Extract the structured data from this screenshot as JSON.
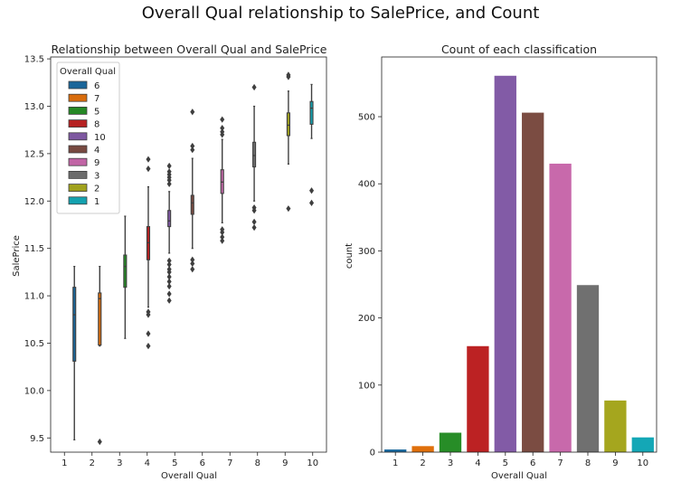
{
  "figure_title": "Overall Qual relationship to SalePrice, and Count",
  "chart_data": [
    {
      "type": "box",
      "title": "Relationship between Overall Qual and SalePrice",
      "xlabel": "Overall Qual",
      "ylabel": "SalePrice",
      "categories": [
        "1",
        "2",
        "3",
        "4",
        "5",
        "6",
        "7",
        "8",
        "9",
        "10"
      ],
      "ylim": [
        9.35,
        13.52
      ],
      "yticks": [
        9.5,
        10.0,
        10.5,
        11.0,
        11.5,
        12.0,
        12.5,
        13.0,
        13.5
      ],
      "yticklabels": [
        "9.5",
        "10.0",
        "10.5",
        "11.0",
        "11.5",
        "12.0",
        "12.5",
        "13.0",
        "13.5"
      ],
      "legend": {
        "title": "Overall Qual",
        "position": "top-left",
        "entries": [
          {
            "label": "6",
            "color": "#1f77b4"
          },
          {
            "label": "7",
            "color": "#ff7f0e"
          },
          {
            "label": "5",
            "color": "#2ca02c"
          },
          {
            "label": "8",
            "color": "#d62728"
          },
          {
            "label": "10",
            "color": "#9467bd"
          },
          {
            "label": "4",
            "color": "#8c564b"
          },
          {
            "label": "9",
            "color": "#e377c2"
          },
          {
            "label": "3",
            "color": "#7f7f7f"
          },
          {
            "label": "2",
            "color": "#bcbd22"
          },
          {
            "label": "1",
            "color": "#17becf"
          }
        ]
      },
      "boxes": [
        {
          "x": "1",
          "min": 9.48,
          "q1": 10.31,
          "median": 10.8,
          "q3": 11.09,
          "max": 11.31,
          "color": "#1f77b4",
          "outliers": []
        },
        {
          "x": "2",
          "min": 10.47,
          "q1": 10.48,
          "median": 10.97,
          "q3": 11.03,
          "max": 11.31,
          "color": "#ff7f0e",
          "outliers": [
            9.46
          ]
        },
        {
          "x": "3",
          "min": 10.55,
          "q1": 11.09,
          "median": 11.31,
          "q3": 11.43,
          "max": 11.84,
          "color": "#2ca02c",
          "outliers": []
        },
        {
          "x": "4",
          "min": 10.88,
          "q1": 11.38,
          "median": 11.56,
          "q3": 11.73,
          "max": 12.15,
          "color": "#d62728",
          "outliers": [
            10.47,
            10.6,
            10.8,
            10.83,
            12.34,
            12.44
          ]
        },
        {
          "x": "5",
          "min": 11.45,
          "q1": 11.73,
          "median": 11.79,
          "q3": 11.9,
          "max": 12.1,
          "color": "#9467bd",
          "outliers": [
            10.95,
            11.02,
            11.1,
            11.15,
            11.2,
            11.25,
            11.28,
            11.33,
            11.37,
            12.18,
            12.22,
            12.25,
            12.28,
            12.31,
            12.37
          ]
        },
        {
          "x": "6",
          "min": 11.5,
          "q1": 11.86,
          "median": 11.98,
          "q3": 12.06,
          "max": 12.45,
          "color": "#8c564b",
          "outliers": [
            11.28,
            11.34,
            11.38,
            12.54,
            12.58,
            12.94
          ]
        },
        {
          "x": "7",
          "min": 11.77,
          "q1": 12.08,
          "median": 12.2,
          "q3": 12.33,
          "max": 12.65,
          "color": "#e377c2",
          "outliers": [
            11.58,
            11.62,
            11.67,
            11.7,
            12.7,
            12.73,
            12.77,
            12.86
          ]
        },
        {
          "x": "8",
          "min": 12.0,
          "q1": 12.36,
          "median": 12.48,
          "q3": 12.62,
          "max": 13.0,
          "color": "#7f7f7f",
          "outliers": [
            11.72,
            11.78,
            11.9,
            11.93,
            13.2
          ]
        },
        {
          "x": "9",
          "min": 12.39,
          "q1": 12.69,
          "median": 12.8,
          "q3": 12.93,
          "max": 13.16,
          "color": "#bcbd22",
          "outliers": [
            11.92,
            13.31,
            13.33
          ]
        },
        {
          "x": "10",
          "min": 12.66,
          "q1": 12.81,
          "median": 12.98,
          "q3": 13.05,
          "max": 13.23,
          "color": "#17becf",
          "outliers": [
            11.98,
            12.11
          ]
        }
      ]
    },
    {
      "type": "bar",
      "title": "Count of each classification",
      "xlabel": "Overall Qual",
      "ylabel": "count",
      "categories": [
        "1",
        "2",
        "3",
        "4",
        "5",
        "6",
        "7",
        "8",
        "9",
        "10"
      ],
      "values": [
        4,
        9,
        29,
        158,
        561,
        506,
        430,
        249,
        77,
        22
      ],
      "colors": [
        "#1f77b4",
        "#ff7f0e",
        "#2ca02c",
        "#d62728",
        "#9467bd",
        "#8c564b",
        "#e377c2",
        "#7f7f7f",
        "#bcbd22",
        "#17becf"
      ],
      "ylim": [
        0,
        589
      ],
      "yticks": [
        0,
        100,
        200,
        300,
        400,
        500
      ],
      "yticklabels": [
        "0",
        "100",
        "200",
        "300",
        "400",
        "500"
      ]
    }
  ]
}
